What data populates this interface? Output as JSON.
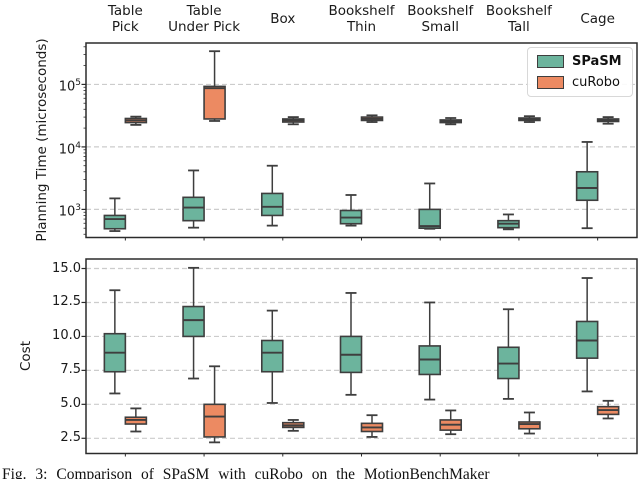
{
  "figure": {
    "category_labels": [
      [
        "Table",
        "Pick"
      ],
      [
        "Table",
        "Under Pick"
      ],
      [
        "Box"
      ],
      [
        "Bookshelf",
        "Thin"
      ],
      [
        "Bookshelf",
        "Small"
      ],
      [
        "Bookshelf",
        "Tall"
      ],
      [
        "Cage"
      ]
    ],
    "colors": {
      "spasm": "#6cb49d",
      "curobo": "#ec8a62",
      "box_edge": "#3e3e3e",
      "gridline": "#cccccc",
      "spine": "#2b2b2b"
    }
  },
  "legend": {
    "items": [
      {
        "label": "SPaSM",
        "color": "#6cb49d",
        "bold": true
      },
      {
        "label": "cuRobo",
        "color": "#ec8a62",
        "bold": false
      }
    ]
  },
  "caption": "Fig. 3:  Comparison of SPaSM with cuRobo on the MotionBenchMaker",
  "chart_data": [
    {
      "type": "box",
      "ylabel": "Planning Time (microseconds)",
      "yscale": "log",
      "ylim": [
        355,
        460000
      ],
      "grid": true,
      "legend_position": "upper right",
      "categories": [
        "Table Pick",
        "Table Under Pick",
        "Box",
        "Bookshelf Thin",
        "Bookshelf Small",
        "Bookshelf Tall",
        "Cage"
      ],
      "yticks": [
        {
          "value": 100000,
          "base": "10",
          "exp": "5"
        },
        {
          "value": 10000,
          "base": "10",
          "exp": "4"
        },
        {
          "value": 1000,
          "base": "10",
          "exp": "3"
        }
      ],
      "minor_ticks": [
        400,
        500,
        600,
        700,
        800,
        900,
        2000,
        3000,
        4000,
        5000,
        6000,
        7000,
        8000,
        9000,
        20000,
        30000,
        40000,
        50000,
        60000,
        70000,
        80000,
        90000,
        200000,
        300000,
        400000
      ],
      "series": [
        {
          "name": "SPaSM",
          "color": "#6cb49d",
          "boxes": [
            {
              "whislo": 450,
              "q1": 490,
              "med": 700,
              "q3": 800,
              "whishi": 1500
            },
            {
              "whislo": 510,
              "q1": 660,
              "med": 1070,
              "q3": 1560,
              "whishi": 4200
            },
            {
              "whislo": 550,
              "q1": 800,
              "med": 1100,
              "q3": 1800,
              "whishi": 5000
            },
            {
              "whislo": 550,
              "q1": 590,
              "med": 740,
              "q3": 960,
              "whishi": 1700
            },
            {
              "whislo": 490,
              "q1": 500,
              "med": 540,
              "q3": 1000,
              "whishi": 2600
            },
            {
              "whislo": 480,
              "q1": 510,
              "med": 590,
              "q3": 660,
              "whishi": 830
            },
            {
              "whislo": 500,
              "q1": 1400,
              "med": 2200,
              "q3": 4000,
              "whishi": 12000
            }
          ]
        },
        {
          "name": "cuRobo",
          "color": "#ec8a62",
          "boxes": [
            {
              "whislo": 22500,
              "q1": 24500,
              "med": 26500,
              "q3": 28500,
              "whishi": 30500
            },
            {
              "whislo": 26000,
              "q1": 28000,
              "med": 87000,
              "q3": 93000,
              "whishi": 340000
            },
            {
              "whislo": 23000,
              "q1": 25000,
              "med": 26500,
              "q3": 28000,
              "whishi": 30000
            },
            {
              "whislo": 25000,
              "q1": 26500,
              "med": 28000,
              "q3": 30000,
              "whishi": 32000
            },
            {
              "whislo": 23000,
              "q1": 24500,
              "med": 25500,
              "q3": 27000,
              "whishi": 29000
            },
            {
              "whislo": 25000,
              "q1": 26500,
              "med": 27500,
              "q3": 29000,
              "whishi": 31000
            },
            {
              "whislo": 23500,
              "q1": 25500,
              "med": 26800,
              "q3": 28000,
              "whishi": 30000
            }
          ]
        }
      ]
    },
    {
      "type": "box",
      "ylabel": "Cost",
      "yscale": "linear",
      "ylim": [
        1.38,
        15.7
      ],
      "grid": true,
      "categories": [
        "Table Pick",
        "Table Under Pick",
        "Box",
        "Bookshelf Thin",
        "Bookshelf Small",
        "Bookshelf Tall",
        "Cage"
      ],
      "yticks": [
        {
          "value": 15.0,
          "label": "15.0"
        },
        {
          "value": 12.5,
          "label": "12.5"
        },
        {
          "value": 10.0,
          "label": "10.0"
        },
        {
          "value": 7.5,
          "label": "7.5"
        },
        {
          "value": 5.0,
          "label": "5.0"
        },
        {
          "value": 2.5,
          "label": "2.5"
        }
      ],
      "series": [
        {
          "name": "SPaSM",
          "color": "#6cb49d",
          "boxes": [
            {
              "whislo": 5.8,
              "q1": 7.4,
              "med": 8.8,
              "q3": 10.2,
              "whishi": 13.4
            },
            {
              "whislo": 6.9,
              "q1": 10.0,
              "med": 11.2,
              "q3": 12.2,
              "whishi": 15.05
            },
            {
              "whislo": 5.1,
              "q1": 7.4,
              "med": 8.8,
              "q3": 9.7,
              "whishi": 11.9
            },
            {
              "whislo": 5.7,
              "q1": 7.35,
              "med": 8.65,
              "q3": 10.0,
              "whishi": 13.2
            },
            {
              "whislo": 5.35,
              "q1": 7.2,
              "med": 8.3,
              "q3": 9.3,
              "whishi": 12.5
            },
            {
              "whislo": 5.4,
              "q1": 6.9,
              "med": 8.0,
              "q3": 9.2,
              "whishi": 12.0
            },
            {
              "whislo": 5.95,
              "q1": 8.4,
              "med": 9.7,
              "q3": 11.1,
              "whishi": 14.3
            }
          ]
        },
        {
          "name": "cuRobo",
          "color": "#ec8a62",
          "boxes": [
            {
              "whislo": 3.0,
              "q1": 3.55,
              "med": 3.85,
              "q3": 4.05,
              "whishi": 4.7
            },
            {
              "whislo": 2.2,
              "q1": 2.6,
              "med": 4.1,
              "q3": 5.0,
              "whishi": 7.8
            },
            {
              "whislo": 3.05,
              "q1": 3.3,
              "med": 3.45,
              "q3": 3.65,
              "whishi": 3.85
            },
            {
              "whislo": 2.6,
              "q1": 3.0,
              "med": 3.3,
              "q3": 3.6,
              "whishi": 4.2
            },
            {
              "whislo": 2.8,
              "q1": 3.1,
              "med": 3.5,
              "q3": 3.85,
              "whishi": 4.55
            },
            {
              "whislo": 2.85,
              "q1": 3.2,
              "med": 3.55,
              "q3": 3.7,
              "whishi": 4.4
            },
            {
              "whislo": 3.96,
              "q1": 4.26,
              "med": 4.58,
              "q3": 4.83,
              "whishi": 5.26
            }
          ]
        }
      ]
    }
  ]
}
